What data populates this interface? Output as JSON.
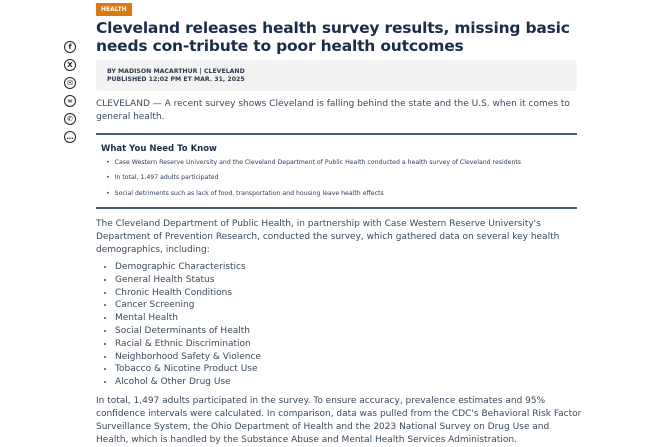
{
  "category_tag": "HEALTH",
  "headline": "Cleveland releases health survey results, missing basic needs con-tribute to poor health outcomes",
  "byline": "BY MADISON MACARTHUR | CLEVELAND",
  "published": "PUBLISHED 12:02 PM ET MAR. 31, 2025",
  "share_icons": [
    "facebook-icon",
    "x-icon",
    "email-icon",
    "link-icon",
    "whatsapp-icon",
    "comment-icon"
  ],
  "lead": "CLEVELAND — A recent survey shows Cleveland is falling behind the state and the U.S. when it comes to general health.",
  "know": {
    "title": "What You Need To Know",
    "items": [
      "Case Western Reserve University and the Cleveland Department of Public Health conducted a health survey of Cleveland residents",
      "In total, 1,497 adults participated",
      "Social detriments such as lack of food, transportation and housing leave health effects"
    ]
  },
  "para1": "The Cleveland Department of Public Health, in partnership with Case Western Reserve University's Department of Prevention Research, conducted the survey, which gathered data on several key health demographics, including:",
  "demographics": [
    "Demographic Characteristics",
    "General Health Status",
    "Chronic Health Conditions",
    "Cancer Screening",
    "Mental Health",
    "Social Determinants of Health",
    "Racial & Ethnic Discrimination",
    "Neighborhood Safety & Violence",
    "Tobacco & Nicotine Product Use",
    "Alcohol & Other Drug Use"
  ],
  "para2": "In total, 1,497 adults participated in the survey. To ensure accuracy, prevalence estimates and 95% confidence intervals were calculated. In comparison, data was pulled from the CDC's Behavioral Risk Factor Surveillance System, the Ohio Department of Health and the 2023 National Survey on Drug Use and Health, which is handled by the Substance Abuse and Mental Health Services Administration.",
  "colors": {
    "tag": "#d97a10",
    "headline": "#1b2d48",
    "rule": "#4b5d73"
  }
}
